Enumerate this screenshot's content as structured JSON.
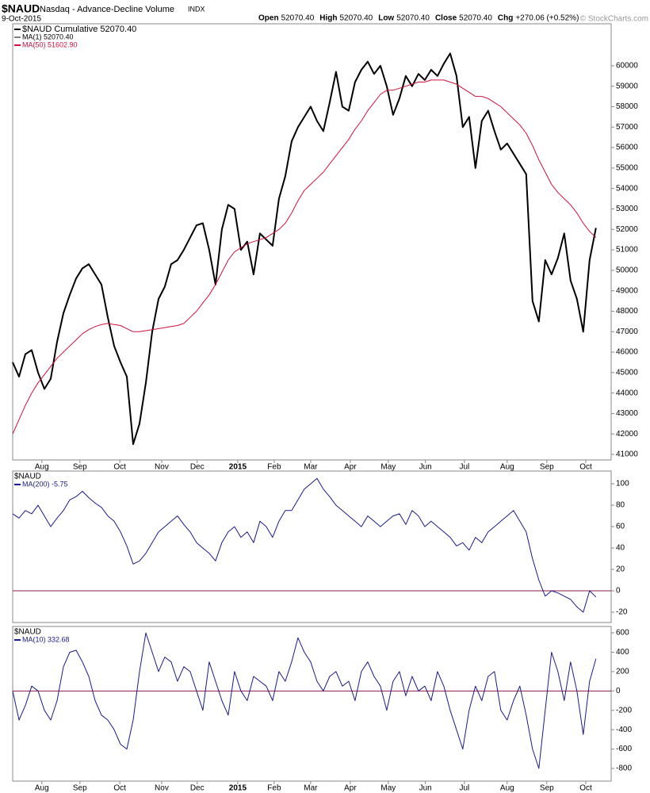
{
  "header": {
    "symbol": "$NAUD",
    "name": "Nasdaq - Advance-Decline Volume",
    "exchange": "INDX",
    "date": "9-Oct-2015",
    "quote": [
      [
        "Open",
        "52070.40"
      ],
      [
        "High",
        "52070.40"
      ],
      [
        "Low",
        "52070.40"
      ],
      [
        "Close",
        "52070.40"
      ],
      [
        "Chg",
        "+270.06 (+0.52%)"
      ]
    ],
    "credit": "© StockCharts.com"
  },
  "chart_data": [
    {
      "type": "line",
      "xlim": [
        0,
        94.4
      ],
      "ylim": [
        40730,
        62050
      ],
      "yticks": [
        41000,
        42000,
        43000,
        44000,
        45000,
        46000,
        47000,
        48000,
        49000,
        50000,
        51000,
        52000,
        53000,
        54000,
        55000,
        56000,
        57000,
        58000,
        59000,
        60000
      ],
      "xticks": [
        {
          "value": 4.6,
          "label": "Aug"
        },
        {
          "value": 10.6,
          "label": "Sep"
        },
        {
          "value": 16.9,
          "label": "Oct"
        },
        {
          "value": 23.5,
          "label": "Nov"
        },
        {
          "value": 29.1,
          "label": "Dec"
        },
        {
          "value": 35.5,
          "label": "2015"
        },
        {
          "value": 41.25,
          "label": "Feb"
        },
        {
          "value": 47,
          "label": "Mar"
        },
        {
          "value": 53.25,
          "label": "Apr"
        },
        {
          "value": 59.25,
          "label": "May"
        },
        {
          "value": 65.1,
          "label": "Jun"
        },
        {
          "value": 71.25,
          "label": "Jul"
        },
        {
          "value": 78,
          "label": "Aug"
        },
        {
          "value": 84.25,
          "label": "Sep"
        },
        {
          "value": 90.4,
          "label": "Oct"
        }
      ],
      "legend_extra": "MA(1) 52070.40",
      "series": [
        {
          "name": "$NAUD Cumulative 52070.40",
          "color": "#000000",
          "width": 2,
          "values": [
            45500,
            44800,
            45900,
            46100,
            45000,
            44200,
            44700,
            46500,
            47900,
            48800,
            49600,
            50100,
            50300,
            49800,
            49300,
            47700,
            46300,
            45500,
            44800,
            41500,
            42500,
            44500,
            47000,
            48600,
            49200,
            50300,
            50500,
            51000,
            51600,
            52200,
            52300,
            51000,
            49300,
            52000,
            53200,
            53000,
            51000,
            51400,
            49800,
            51800,
            51500,
            51200,
            53500,
            54600,
            56300,
            57000,
            57500,
            58000,
            57300,
            56800,
            58200,
            59700,
            58000,
            57800,
            59200,
            59800,
            60200,
            59600,
            60000,
            59000,
            57600,
            58400,
            59500,
            59000,
            59600,
            59300,
            59800,
            59500,
            60100,
            60600,
            59500,
            57000,
            57500,
            55000,
            57300,
            57800,
            56800,
            55900,
            56200,
            55700,
            55200,
            54700,
            48500,
            47500,
            50500,
            49800,
            50600,
            51800,
            49500,
            48600,
            47000,
            50500,
            52070.4
          ]
        },
        {
          "name": "MA(50) 51602.90",
          "color": "#d0103a",
          "width": 1,
          "values": [
            42000,
            42700,
            43400,
            44000,
            44500,
            44900,
            45300,
            45700,
            46000,
            46300,
            46600,
            46900,
            47100,
            47250,
            47350,
            47400,
            47350,
            47300,
            47150,
            47000,
            47000,
            47050,
            47100,
            47150,
            47200,
            47250,
            47300,
            47400,
            47700,
            48000,
            48400,
            48800,
            49300,
            49900,
            50500,
            50900,
            51100,
            51300,
            51400,
            51500,
            51600,
            51800,
            52000,
            52300,
            52800,
            53400,
            53900,
            54200,
            54500,
            54800,
            55200,
            55600,
            56000,
            56400,
            56900,
            57300,
            57800,
            58200,
            58600,
            58800,
            58800,
            58900,
            59000,
            59100,
            59200,
            59200,
            59300,
            59300,
            59300,
            59200,
            59100,
            58900,
            58700,
            58500,
            58500,
            58400,
            58200,
            58000,
            57700,
            57400,
            57100,
            56700,
            56100,
            55400,
            54800,
            54200,
            53800,
            53500,
            53200,
            52800,
            52300,
            51900,
            51602.9
          ]
        }
      ]
    },
    {
      "type": "line",
      "xlim": [
        0,
        94.4
      ],
      "ylim": [
        -29.6,
        111.9
      ],
      "title": "$NAUD",
      "yticks": [
        -20,
        0,
        20,
        40,
        60,
        80,
        100
      ],
      "hlines": [
        0
      ],
      "hline_color": "#8b1a4a",
      "series": [
        {
          "name": "MA(200) -5.75",
          "color": "#1a1a8c",
          "width": 1,
          "values": [
            72,
            68,
            75,
            72,
            80,
            70,
            60,
            68,
            75,
            85,
            88,
            93,
            87,
            82,
            78,
            70,
            65,
            55,
            42,
            25,
            28,
            35,
            45,
            55,
            60,
            65,
            70,
            62,
            55,
            45,
            40,
            35,
            28,
            45,
            55,
            60,
            50,
            55,
            45,
            65,
            60,
            50,
            65,
            75,
            75,
            85,
            95,
            100,
            105,
            95,
            88,
            80,
            75,
            70,
            65,
            60,
            70,
            65,
            60,
            65,
            70,
            72,
            62,
            75,
            70,
            60,
            65,
            60,
            55,
            50,
            42,
            45,
            38,
            50,
            45,
            55,
            60,
            65,
            70,
            75,
            65,
            55,
            30,
            10,
            -5,
            0,
            -2,
            -5,
            -8,
            -15,
            -20,
            0,
            -5.75
          ]
        }
      ]
    },
    {
      "type": "line",
      "xlim": [
        0,
        94.4
      ],
      "ylim": [
        -931,
        666
      ],
      "title": "$NAUD",
      "yticks": [
        -800,
        -600,
        -400,
        -200,
        0,
        200,
        400,
        600
      ],
      "hlines": [
        0
      ],
      "hline_color": "#8b1a4a",
      "xticks": [
        {
          "value": 4.6,
          "label": "Aug"
        },
        {
          "value": 10.6,
          "label": "Sep"
        },
        {
          "value": 16.9,
          "label": "Oct"
        },
        {
          "value": 23.5,
          "label": "Nov"
        },
        {
          "value": 29.1,
          "label": "Dec"
        },
        {
          "value": 35.5,
          "label": "2015"
        },
        {
          "value": 41.25,
          "label": "Feb"
        },
        {
          "value": 47,
          "label": "Mar"
        },
        {
          "value": 53.25,
          "label": "Apr"
        },
        {
          "value": 59.25,
          "label": "May"
        },
        {
          "value": 65.1,
          "label": "Jun"
        },
        {
          "value": 71.25,
          "label": "Jul"
        },
        {
          "value": 78,
          "label": "Aug"
        },
        {
          "value": 84.25,
          "label": "Sep"
        },
        {
          "value": 90.4,
          "label": "Oct"
        }
      ],
      "series": [
        {
          "name": "MA(10) 332.68",
          "color": "#1a1a8c",
          "width": 1,
          "values": [
            0,
            -300,
            -150,
            50,
            0,
            -200,
            -300,
            -100,
            250,
            400,
            420,
            300,
            150,
            -100,
            -250,
            -300,
            -400,
            -550,
            -600,
            -300,
            200,
            600,
            400,
            200,
            350,
            300,
            100,
            250,
            200,
            0,
            -200,
            300,
            100,
            -100,
            -250,
            200,
            0,
            -100,
            150,
            100,
            50,
            -100,
            200,
            100,
            300,
            550,
            400,
            300,
            100,
            0,
            150,
            200,
            50,
            100,
            -100,
            200,
            300,
            150,
            50,
            -200,
            100,
            200,
            -50,
            150,
            0,
            50,
            -100,
            200,
            50,
            -200,
            -400,
            -600,
            -200,
            50,
            -100,
            150,
            200,
            -200,
            -300,
            -100,
            50,
            -250,
            -600,
            -800,
            -200,
            400,
            200,
            -100,
            300,
            0,
            -450,
            100,
            332.68
          ]
        }
      ]
    }
  ]
}
